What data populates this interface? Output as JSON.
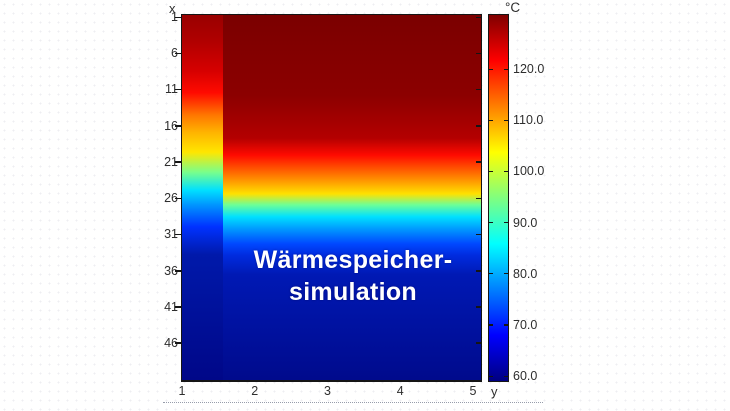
{
  "figure": {
    "title_overlay": {
      "line1": "Wärmespeicher-",
      "line2": "simulation"
    },
    "axis_left": {
      "label": "x",
      "tick_labels": [
        "1",
        "6",
        "11",
        "16",
        "21",
        "26",
        "31",
        "36",
        "41",
        "46"
      ]
    },
    "axis_bottom": {
      "label": "y",
      "tick_labels": [
        "1",
        "2",
        "3",
        "4",
        "5"
      ]
    },
    "colorbar": {
      "unit": "°C",
      "tick_labels": [
        "120.0",
        "110.0",
        "100.0",
        "90.0",
        "80.0",
        "70.0",
        "60.0"
      ]
    }
  },
  "chart_data": {
    "type": "heatmap",
    "title": "Wärmespeicher-simulation",
    "xlabel": "y",
    "ylabel": "x",
    "x_range": [
      1,
      5
    ],
    "y_range": [
      1,
      50
    ],
    "x_ticks": [
      1,
      2,
      3,
      4,
      5
    ],
    "y_ticks": [
      1,
      6,
      11,
      16,
      21,
      26,
      31,
      36,
      41,
      46
    ],
    "colorbar": {
      "unit": "°C",
      "ticks": [
        120.0,
        110.0,
        100.0,
        90.0,
        80.0,
        70.0,
        60.0
      ],
      "value_min": 58.8,
      "value_max": 130.4,
      "colormap": "jet"
    },
    "description": "Vertical temperature stratification of a heat-storage simulation; hot (~130 °C) at top fading to cold (~59 °C) at bottom. A narrower left column (y ≈ 1–1.5) is cooler, its transition shifted upward versus the main region (y ≈ 1.5–5).",
    "regions": [
      {
        "name": "left-column",
        "x_span": [
          1,
          1.5
        ],
        "sample_rows_x": [
          1,
          6,
          11,
          16,
          21,
          26,
          31,
          36,
          41,
          46
        ],
        "temps_c": [
          126,
          125,
          122,
          116,
          101,
          80,
          65,
          60,
          59,
          58.5
        ]
      },
      {
        "name": "main-area",
        "x_span": [
          1.5,
          5
        ],
        "sample_rows_x": [
          1,
          6,
          11,
          16,
          21,
          26,
          31,
          36,
          41,
          46
        ],
        "temps_c": [
          130,
          130,
          129,
          126,
          114,
          95,
          75,
          62,
          60,
          59
        ]
      }
    ],
    "legend_position": "colorbar-right",
    "grid": false
  },
  "colors": {
    "background": "#ffffff",
    "axis_text": "#2e2e2e",
    "plot_border": "#151515",
    "title_text": "#ffffff",
    "jet_anchors": [
      "#800000",
      "#FF0000",
      "#FFFF00",
      "#00FFFF",
      "#0000FF",
      "#000080"
    ]
  }
}
